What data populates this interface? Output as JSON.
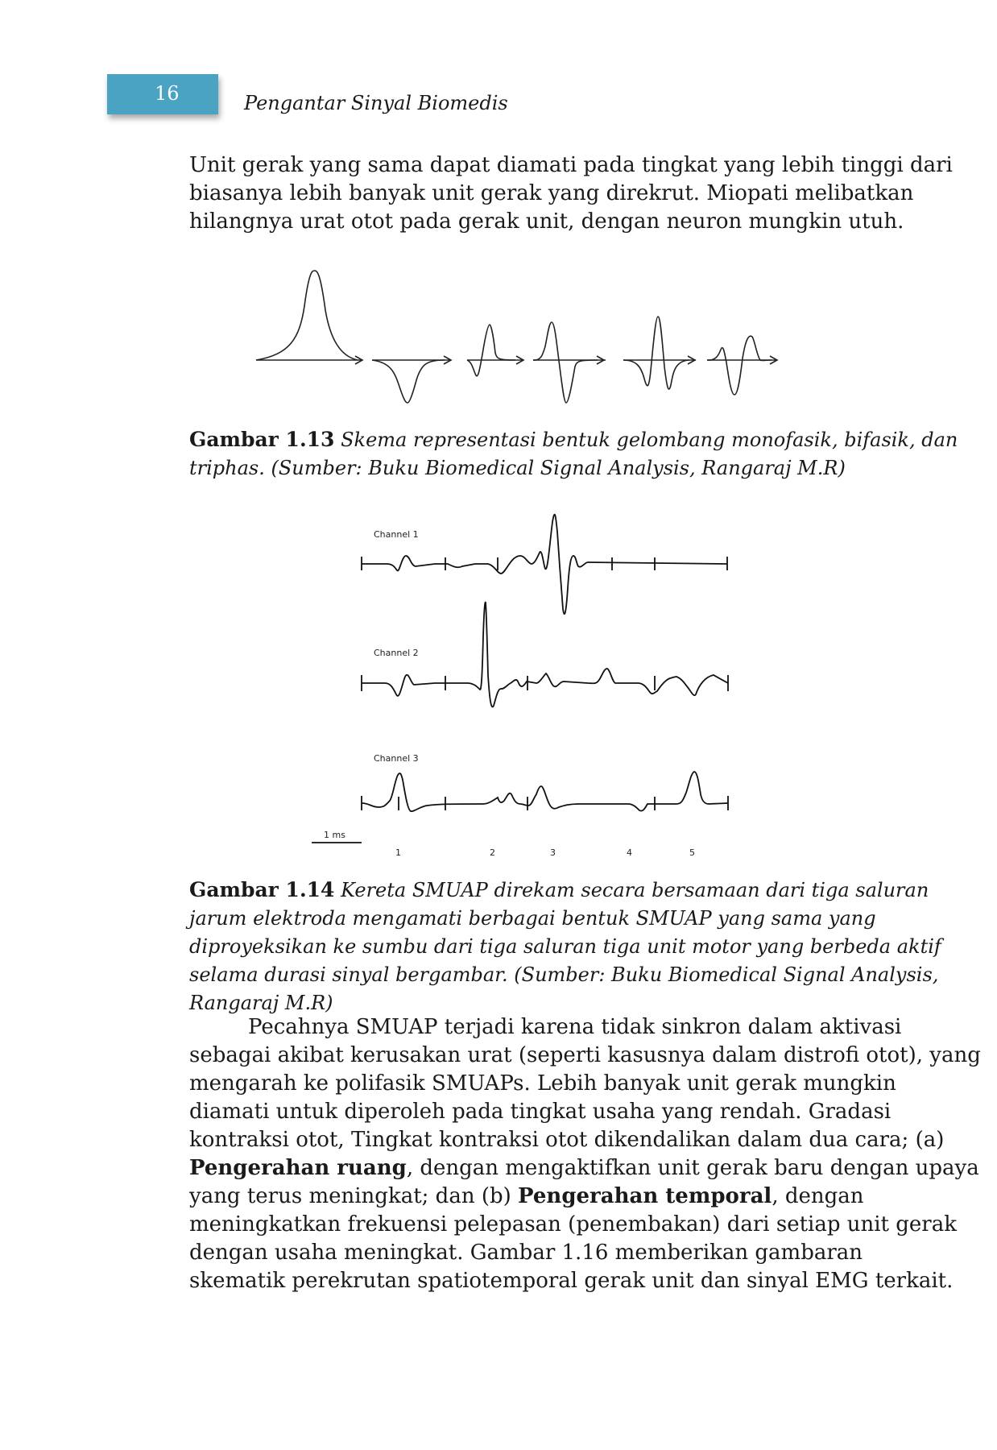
{
  "header": {
    "page_number": "16",
    "running_title": "Pengantar Sinyal Biomedis",
    "tab_color": "#4aa3c2"
  },
  "intro_paragraph": [
    "Unit gerak yang sama dapat diamati pada tingkat yang lebih tinggi dari",
    "biasanya lebih banyak unit gerak yang direkrut. Miopati melibatkan",
    "hilangnya urat otot pada gerak unit, dengan neuron mungkin utuh."
  ],
  "figure_1_13": {
    "label": "Gambar 1.13",
    "caption_lines": [
      "Skema representasi bentuk gelombang monofasik, bifasik, dan",
      "triphas. (Sumber: Buku Biomedical Signal Analysis, Rangaraj M.R)"
    ]
  },
  "figure_1_14": {
    "channel_labels": [
      "Channel 1",
      "Channel 2",
      "Channel 3"
    ],
    "scale_label": "1 ms",
    "unit_markers": [
      "1",
      "2",
      "3",
      "4",
      "5"
    ],
    "label": "Gambar 1.14",
    "caption_lines": [
      "Kereta SMUAP direkam secara bersamaan dari tiga saluran",
      "jarum elektroda mengamati berbagai bentuk SMUAP yang sama yang",
      "diproyeksikan ke sumbu dari tiga saluran tiga unit motor yang berbeda aktif",
      "selama durasi sinyal bergambar. (Sumber: Buku Biomedical Signal Analysis,",
      "Rangaraj M.R)"
    ]
  },
  "body_paragraph": {
    "line1": "Pecahnya SMUAP terjadi karena tidak sinkron dalam aktivasi",
    "line2": "sebagai akibat kerusakan urat (seperti kasusnya dalam distrofi otot), yang",
    "line3": "mengarah ke polifasik SMUAPs. Lebih banyak unit gerak mungkin",
    "line4": "diamati untuk diperoleh pada tingkat usaha yang rendah. Gradasi",
    "line5": "kontraksi otot, Tingkat kontraksi otot dikendalikan dalam dua cara; (a)",
    "line6_bold": "Pengerahan ruang",
    "line6_rest": ", dengan mengaktifkan unit gerak baru dengan upaya",
    "line7_pre": "yang terus meningkat; dan (b) ",
    "line7_bold": "Pengerahan temporal",
    "line7_rest": ", dengan",
    "line8": "meningkatkan frekuensi pelepasan (penembakan) dari setiap unit gerak",
    "line9": "dengan usaha meningkat. Gambar 1.16 memberikan gambaran",
    "line10": "skematik perekrutan spatiotemporal gerak unit dan sinyal EMG terkait."
  }
}
